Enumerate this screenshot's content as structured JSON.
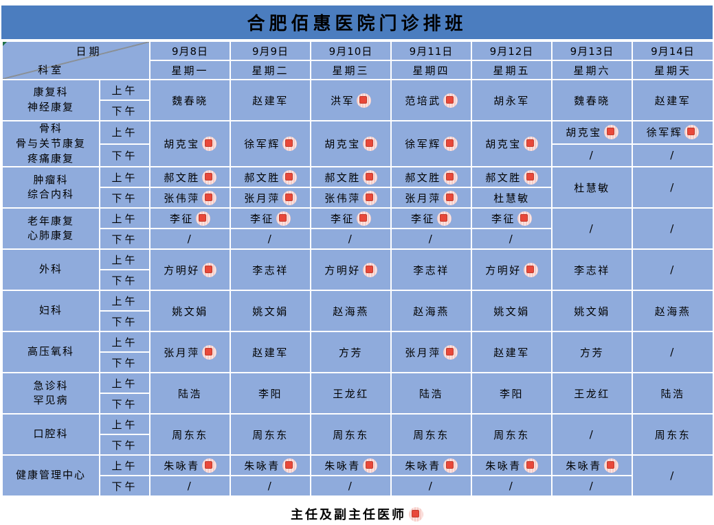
{
  "title": "合肥佰惠医院门诊排班",
  "corner": {
    "date_label": "日期",
    "dept_label": "科室"
  },
  "sessions": {
    "am": "上午",
    "pm": "下午"
  },
  "days": [
    {
      "date": "9月8日",
      "weekday": "星期一"
    },
    {
      "date": "9月9日",
      "weekday": "星期二"
    },
    {
      "date": "9月10日",
      "weekday": "星期三"
    },
    {
      "date": "9月11日",
      "weekday": "星期四"
    },
    {
      "date": "9月12日",
      "weekday": "星期五"
    },
    {
      "date": "9月13日",
      "weekday": "星期六"
    },
    {
      "date": "9月14日",
      "weekday": "星期天"
    }
  ],
  "schedule": [
    {
      "name_lines": [
        "康复科",
        "神经康复"
      ],
      "days": [
        {
          "merged": true,
          "name": "魏春晓",
          "chief": false
        },
        {
          "merged": true,
          "name": "赵建军",
          "chief": false
        },
        {
          "merged": true,
          "name": "洪军",
          "chief": true
        },
        {
          "merged": true,
          "name": "范培武",
          "chief": true
        },
        {
          "merged": true,
          "name": "胡永军",
          "chief": false
        },
        {
          "merged": true,
          "name": "魏春晓",
          "chief": false
        },
        {
          "merged": true,
          "name": "赵建军",
          "chief": false
        }
      ]
    },
    {
      "name_lines": [
        "骨科",
        "骨与关节康复",
        "疼痛康复"
      ],
      "days": [
        {
          "merged": true,
          "name": "胡克宝",
          "chief": true
        },
        {
          "merged": true,
          "name": "徐军辉",
          "chief": true
        },
        {
          "merged": true,
          "name": "胡克宝",
          "chief": true
        },
        {
          "merged": true,
          "name": "徐军辉",
          "chief": true
        },
        {
          "merged": true,
          "name": "胡克宝",
          "chief": true
        },
        {
          "merged": false,
          "am": {
            "name": "胡克宝",
            "chief": true
          },
          "pm": {
            "name": "/",
            "chief": false
          }
        },
        {
          "merged": false,
          "am": {
            "name": "徐军辉",
            "chief": true
          },
          "pm": {
            "name": "/",
            "chief": false
          }
        }
      ]
    },
    {
      "name_lines": [
        "肿瘤科",
        "综合内科"
      ],
      "days": [
        {
          "merged": false,
          "am": {
            "name": "郝文胜",
            "chief": true
          },
          "pm": {
            "name": "张伟萍",
            "chief": true
          }
        },
        {
          "merged": false,
          "am": {
            "name": "郝文胜",
            "chief": true
          },
          "pm": {
            "name": "张月萍",
            "chief": true
          }
        },
        {
          "merged": false,
          "am": {
            "name": "郝文胜",
            "chief": true
          },
          "pm": {
            "name": "张伟萍",
            "chief": true
          }
        },
        {
          "merged": false,
          "am": {
            "name": "郝文胜",
            "chief": true
          },
          "pm": {
            "name": "张月萍",
            "chief": true
          }
        },
        {
          "merged": false,
          "am": {
            "name": "郝文胜",
            "chief": true
          },
          "pm": {
            "name": "杜慧敏",
            "chief": false
          }
        },
        {
          "merged": true,
          "name": "杜慧敏",
          "chief": false
        },
        {
          "merged": true,
          "name": "/",
          "chief": false
        }
      ]
    },
    {
      "name_lines": [
        "老年康复",
        "心肺康复"
      ],
      "days": [
        {
          "merged": false,
          "am": {
            "name": "李征",
            "chief": true
          },
          "pm": {
            "name": "/",
            "chief": false
          }
        },
        {
          "merged": false,
          "am": {
            "name": "李征",
            "chief": true
          },
          "pm": {
            "name": "/",
            "chief": false
          }
        },
        {
          "merged": false,
          "am": {
            "name": "李征",
            "chief": true
          },
          "pm": {
            "name": "/",
            "chief": false
          }
        },
        {
          "merged": false,
          "am": {
            "name": "李征",
            "chief": true
          },
          "pm": {
            "name": "/",
            "chief": false
          }
        },
        {
          "merged": false,
          "am": {
            "name": "李征",
            "chief": true
          },
          "pm": {
            "name": "/",
            "chief": false
          }
        },
        {
          "merged": true,
          "name": "/",
          "chief": false
        },
        {
          "merged": true,
          "name": "/",
          "chief": false
        }
      ]
    },
    {
      "name_lines": [
        "外科"
      ],
      "days": [
        {
          "merged": true,
          "name": "方明好",
          "chief": true
        },
        {
          "merged": true,
          "name": "李志祥",
          "chief": false
        },
        {
          "merged": true,
          "name": "方明好",
          "chief": true
        },
        {
          "merged": true,
          "name": "李志祥",
          "chief": false
        },
        {
          "merged": true,
          "name": "方明好",
          "chief": true
        },
        {
          "merged": true,
          "name": "李志祥",
          "chief": false
        },
        {
          "merged": true,
          "name": "/",
          "chief": false
        }
      ]
    },
    {
      "name_lines": [
        "妇科"
      ],
      "days": [
        {
          "merged": true,
          "name": "姚文娟",
          "chief": false
        },
        {
          "merged": true,
          "name": "姚文娟",
          "chief": false
        },
        {
          "merged": true,
          "name": "赵海燕",
          "chief": false
        },
        {
          "merged": true,
          "name": "赵海燕",
          "chief": false
        },
        {
          "merged": true,
          "name": "姚文娟",
          "chief": false
        },
        {
          "merged": true,
          "name": "姚文娟",
          "chief": false
        },
        {
          "merged": true,
          "name": "赵海燕",
          "chief": false
        }
      ]
    },
    {
      "name_lines": [
        "高压氧科"
      ],
      "days": [
        {
          "merged": true,
          "name": "张月萍",
          "chief": true
        },
        {
          "merged": true,
          "name": "赵建军",
          "chief": false
        },
        {
          "merged": true,
          "name": "方芳",
          "chief": false
        },
        {
          "merged": true,
          "name": "张月萍",
          "chief": true
        },
        {
          "merged": true,
          "name": "赵建军",
          "chief": false
        },
        {
          "merged": true,
          "name": "方芳",
          "chief": false
        },
        {
          "merged": true,
          "name": "/",
          "chief": false
        }
      ]
    },
    {
      "name_lines": [
        "急诊科",
        "罕见病"
      ],
      "days": [
        {
          "merged": true,
          "name": "陆浩",
          "chief": false
        },
        {
          "merged": true,
          "name": "李阳",
          "chief": false
        },
        {
          "merged": true,
          "name": "王龙红",
          "chief": false
        },
        {
          "merged": true,
          "name": "陆浩",
          "chief": false
        },
        {
          "merged": true,
          "name": "李阳",
          "chief": false
        },
        {
          "merged": true,
          "name": "王龙红",
          "chief": false
        },
        {
          "merged": true,
          "name": "陆浩",
          "chief": false
        }
      ]
    },
    {
      "name_lines": [
        "口腔科"
      ],
      "days": [
        {
          "merged": true,
          "name": "周东东",
          "chief": false
        },
        {
          "merged": true,
          "name": "周东东",
          "chief": false
        },
        {
          "merged": true,
          "name": "周东东",
          "chief": false
        },
        {
          "merged": true,
          "name": "周东东",
          "chief": false
        },
        {
          "merged": true,
          "name": "周东东",
          "chief": false
        },
        {
          "merged": true,
          "name": "/",
          "chief": false
        },
        {
          "merged": true,
          "name": "周东东",
          "chief": false
        }
      ]
    },
    {
      "name_lines": [
        "健康管理中心"
      ],
      "days": [
        {
          "merged": false,
          "am": {
            "name": "朱咏青",
            "chief": true
          },
          "pm": {
            "name": "/",
            "chief": false
          }
        },
        {
          "merged": false,
          "am": {
            "name": "朱咏青",
            "chief": true
          },
          "pm": {
            "name": "/",
            "chief": false
          }
        },
        {
          "merged": false,
          "am": {
            "name": "朱咏青",
            "chief": true
          },
          "pm": {
            "name": "/",
            "chief": false
          }
        },
        {
          "merged": false,
          "am": {
            "name": "朱咏青",
            "chief": true
          },
          "pm": {
            "name": "/",
            "chief": false
          }
        },
        {
          "merged": false,
          "am": {
            "name": "朱咏青",
            "chief": true
          },
          "pm": {
            "name": "/",
            "chief": false
          }
        },
        {
          "merged": false,
          "am": {
            "name": "朱咏青",
            "chief": true
          },
          "pm": {
            "name": "/",
            "chief": false
          }
        },
        {
          "merged": true,
          "name": "/",
          "chief": false
        }
      ]
    }
  ],
  "legend": {
    "label": "主任及副主任医师",
    "icon": "chief-physician-badge"
  },
  "colors": {
    "title_bar": "#4b7dbf",
    "cell_blue": "#8fabdc",
    "grid_white": "#ffffff",
    "badge_red": "#e8483a",
    "badge_circle_pink": "#f6cdc8",
    "diagonal_line": "#8a9097",
    "flag_green": "#1e7145",
    "text": "#000000"
  }
}
